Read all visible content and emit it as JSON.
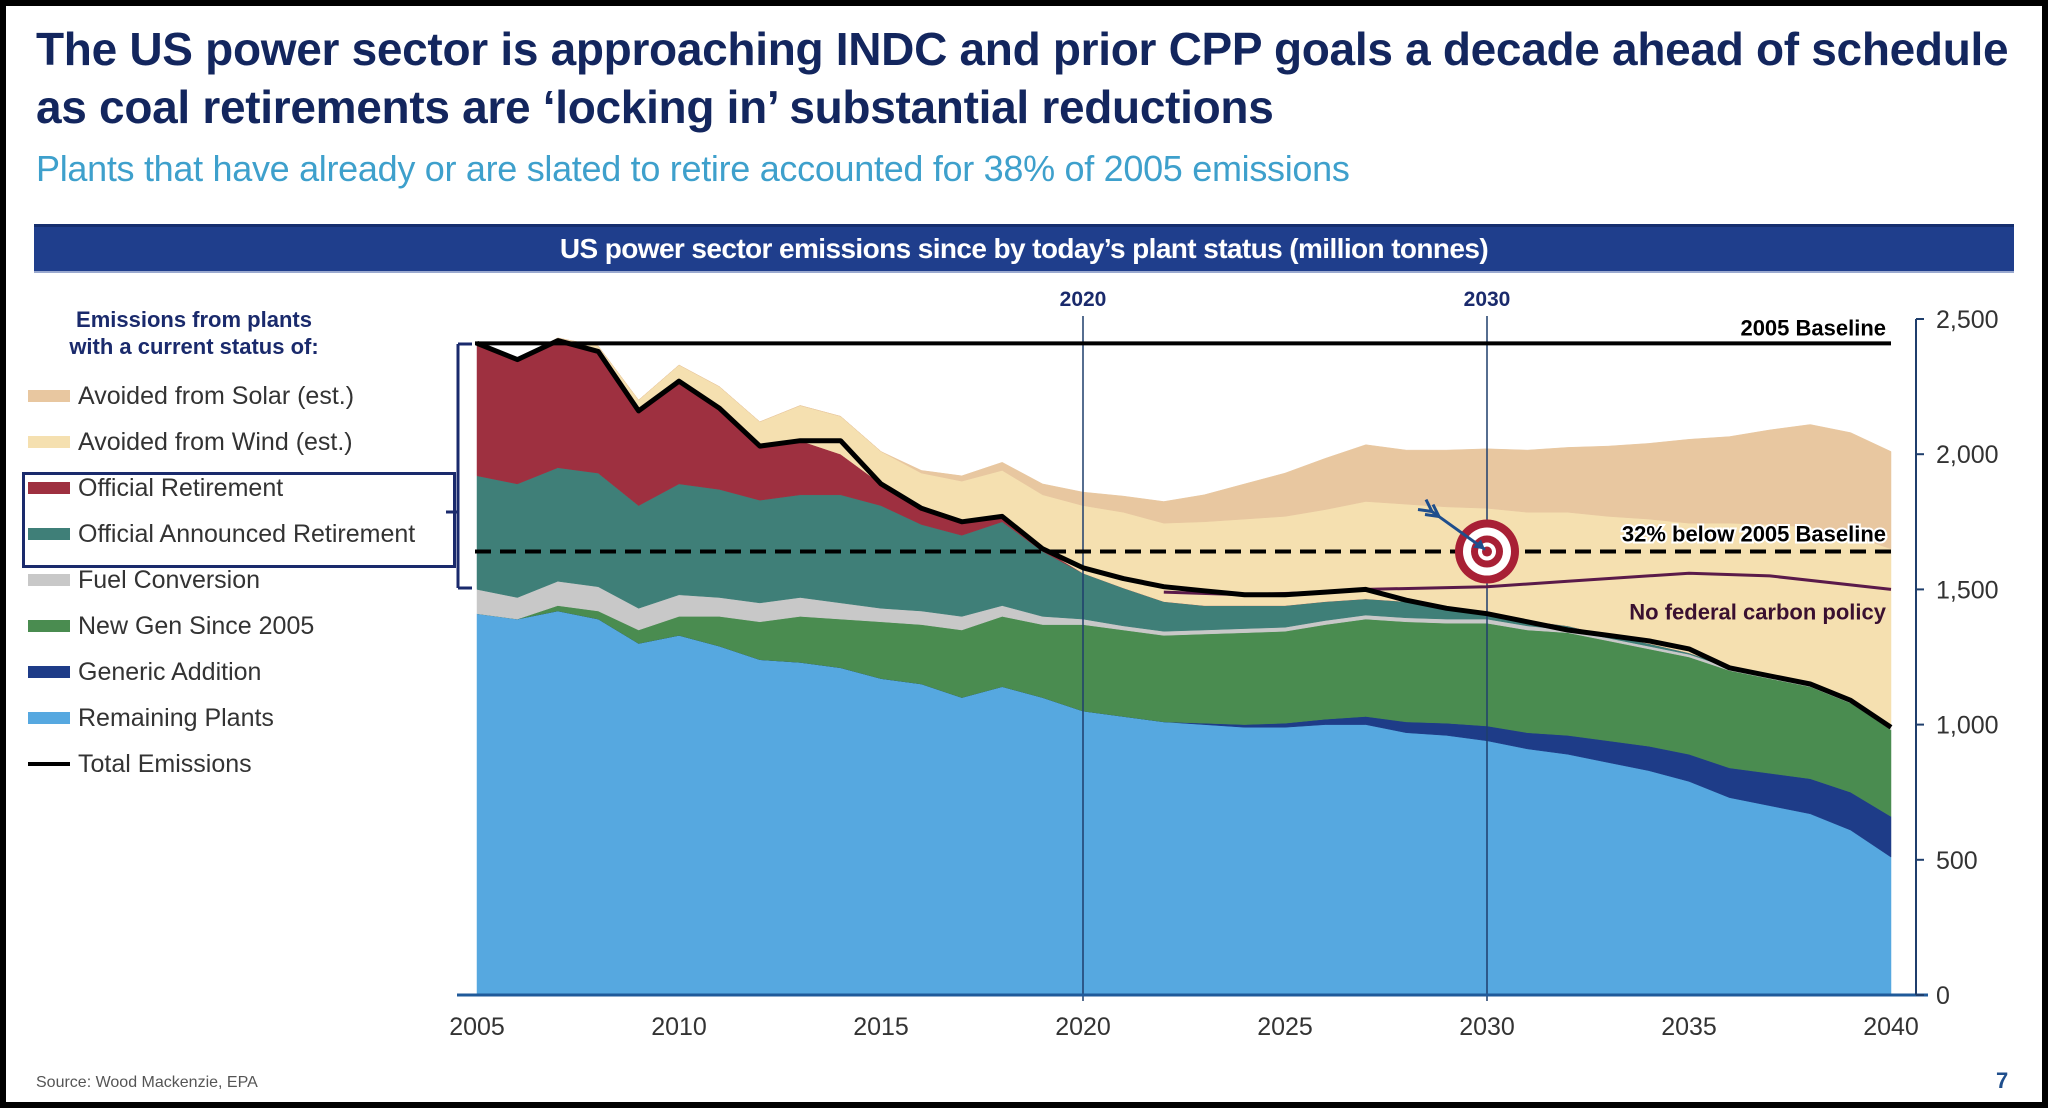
{
  "slide": {
    "title": "The US power sector is approaching INDC and prior CPP goals a decade ahead of schedule as coal retirements are ‘locking in’ substantial reductions",
    "subtitle": "Plants that have already or are slated to retire accounted for 38% of 2005 emissions",
    "banner": "US power sector emissions since by today’s plant status (million tonnes)",
    "source": "Source: Wood Mackenzie,  EPA",
    "page_number": "7"
  },
  "legend": {
    "heading_line1": "Emissions from plants",
    "heading_line2": "with a current status of:",
    "items": [
      {
        "label": "Avoided from Solar (est.)",
        "color": "#e8c7a0",
        "kind": "area"
      },
      {
        "label": "Avoided from Wind (est.)",
        "color": "#f5e0b0",
        "kind": "area"
      },
      {
        "label": "Official Retirement",
        "color": "#9e3040",
        "kind": "area"
      },
      {
        "label": "Official Announced Retirement",
        "color": "#3f7f78",
        "kind": "area"
      },
      {
        "label": "Fuel Conversion",
        "color": "#c8c8c8",
        "kind": "area"
      },
      {
        "label": "New Gen Since 2005",
        "color": "#4a8c50",
        "kind": "area"
      },
      {
        "label": "Generic Addition",
        "color": "#1e3c88",
        "kind": "area"
      },
      {
        "label": "Remaining Plants",
        "color": "#56a8e0",
        "kind": "area"
      },
      {
        "label": "Total Emissions",
        "color": "#000000",
        "kind": "line"
      }
    ]
  },
  "chart_data": {
    "type": "area",
    "title": "US power sector emissions since by today’s plant status (million tonnes)",
    "xlabel": "",
    "ylabel": "million tonnes",
    "x": [
      2005,
      2006,
      2007,
      2008,
      2009,
      2010,
      2011,
      2012,
      2013,
      2014,
      2015,
      2016,
      2017,
      2018,
      2019,
      2020,
      2021,
      2022,
      2023,
      2024,
      2025,
      2026,
      2027,
      2028,
      2029,
      2030,
      2031,
      2032,
      2033,
      2034,
      2035,
      2036,
      2037,
      2038,
      2039,
      2040
    ],
    "x_ticks": [
      "2005",
      "2010",
      "2015",
      "2020",
      "2025",
      "2030",
      "2035",
      "2040"
    ],
    "y_ticks": [
      "0",
      "500",
      "1,000",
      "1,500",
      "2,000",
      "2,500"
    ],
    "ylim": [
      0,
      2500
    ],
    "xlim": [
      2005,
      2040
    ],
    "grid": false,
    "legend_position": "left",
    "stacked": true,
    "series": [
      {
        "name": "Remaining Plants",
        "color": "#56a8e0",
        "values": [
          1410,
          1390,
          1420,
          1390,
          1300,
          1330,
          1290,
          1240,
          1230,
          1210,
          1170,
          1150,
          1100,
          1140,
          1100,
          1050,
          1030,
          1010,
          1000,
          990,
          990,
          1000,
          1000,
          970,
          960,
          940,
          910,
          890,
          860,
          830,
          790,
          730,
          700,
          670,
          610,
          510
        ]
      },
      {
        "name": "Generic Addition",
        "color": "#1e3c88",
        "values": [
          0,
          0,
          0,
          0,
          0,
          0,
          0,
          0,
          0,
          0,
          0,
          0,
          0,
          0,
          0,
          0,
          0,
          0,
          5,
          10,
          15,
          20,
          30,
          40,
          45,
          55,
          60,
          70,
          80,
          90,
          100,
          110,
          120,
          130,
          140,
          150
        ]
      },
      {
        "name": "New Gen Since 2005",
        "color": "#4a8c50",
        "values": [
          0,
          0,
          20,
          30,
          50,
          70,
          110,
          140,
          170,
          180,
          210,
          220,
          250,
          260,
          270,
          320,
          320,
          320,
          330,
          340,
          340,
          350,
          360,
          370,
          370,
          380,
          380,
          380,
          370,
          360,
          360,
          360,
          350,
          340,
          330,
          320
        ]
      },
      {
        "name": "Fuel Conversion",
        "color": "#c8c8c8",
        "values": [
          90,
          80,
          90,
          90,
          80,
          80,
          70,
          70,
          70,
          60,
          50,
          50,
          50,
          40,
          30,
          20,
          15,
          15,
          15,
          15,
          15,
          15,
          15,
          15,
          15,
          15,
          15,
          10,
          10,
          10,
          10,
          10,
          10,
          10,
          10,
          10
        ]
      },
      {
        "name": "Official Announced Retirement",
        "color": "#3f7f78",
        "values": [
          420,
          420,
          420,
          420,
          380,
          410,
          400,
          380,
          380,
          400,
          380,
          320,
          300,
          310,
          240,
          170,
          140,
          110,
          90,
          85,
          80,
          70,
          60,
          60,
          45,
          30,
          20,
          15,
          10,
          10,
          5,
          5,
          0,
          0,
          0,
          0
        ]
      },
      {
        "name": "Official Retirement",
        "color": "#9e3040",
        "values": [
          490,
          460,
          470,
          450,
          350,
          380,
          300,
          200,
          200,
          150,
          80,
          60,
          50,
          20,
          10,
          0,
          0,
          0,
          0,
          0,
          0,
          0,
          0,
          0,
          0,
          0,
          0,
          0,
          0,
          0,
          0,
          0,
          0,
          0,
          0,
          0
        ]
      },
      {
        "name": "Avoided from Wind (est.)",
        "color": "#f5e0b0",
        "values": [
          0,
          0,
          10,
          20,
          40,
          60,
          80,
          90,
          130,
          140,
          120,
          130,
          150,
          170,
          200,
          250,
          280,
          290,
          310,
          320,
          330,
          340,
          360,
          360,
          370,
          380,
          400,
          420,
          440,
          460,
          480,
          530,
          560,
          580,
          610,
          660
        ]
      },
      {
        "name": "Avoided from Solar (est.)",
        "color": "#e8c7a0",
        "values": [
          0,
          0,
          0,
          0,
          0,
          0,
          0,
          0,
          0,
          0,
          0,
          10,
          20,
          30,
          40,
          50,
          60,
          80,
          100,
          130,
          160,
          190,
          210,
          200,
          210,
          220,
          230,
          240,
          260,
          280,
          310,
          320,
          350,
          380,
          380,
          360
        ]
      }
    ],
    "total_emissions": {
      "name": "Total Emissions",
      "color": "#000000",
      "values": [
        2410,
        2350,
        2420,
        2380,
        2160,
        2270,
        2170,
        2030,
        2050,
        2050,
        1890,
        1800,
        1750,
        1770,
        1650,
        1580,
        1540,
        1510,
        1495,
        1480,
        1480,
        1490,
        1500,
        1460,
        1430,
        1410,
        1380,
        1350,
        1330,
        1310,
        1280,
        1210,
        1180,
        1150,
        1090,
        990
      ]
    },
    "no_policy_line": {
      "name": "No federal carbon policy",
      "color": "#5a1a4a",
      "x": [
        2022,
        2024,
        2026,
        2027,
        2030,
        2032,
        2035,
        2037,
        2040
      ],
      "values": [
        1490,
        1480,
        1490,
        1500,
        1510,
        1530,
        1560,
        1550,
        1500
      ]
    },
    "reference_lines": [
      {
        "label": "2005 Baseline",
        "value": 2410,
        "style": "solid"
      },
      {
        "label": "32% below 2005 Baseline",
        "value": 1640,
        "style": "dashed"
      }
    ],
    "vertical_markers": [
      {
        "label": "2020",
        "x": 2020
      },
      {
        "label": "2030",
        "x": 2030
      }
    ],
    "annotations": [
      {
        "text": "2005 Baseline"
      },
      {
        "text": "32% below 2005 Baseline"
      },
      {
        "text": "No federal carbon policy"
      },
      {
        "text": "target-bullseye",
        "x": 2030,
        "value": 1640
      }
    ]
  }
}
